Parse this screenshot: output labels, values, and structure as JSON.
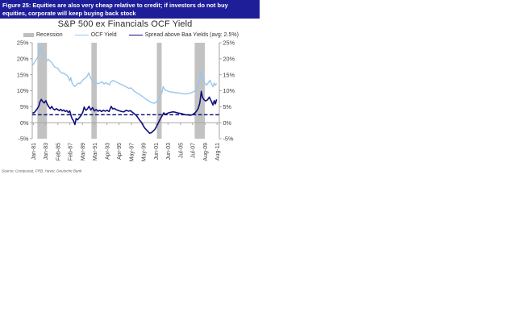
{
  "header": {
    "line1": "Figure 25: Equities are also very cheap relative to credit; if investors do not buy",
    "line2": "equities, corporate will keep buying back stock",
    "bg_color": "#1E1E99",
    "text_color": "#FFFFFF"
  },
  "chart_data": {
    "type": "line",
    "title": "S&P 500 ex Financials OCF Yield",
    "source": "Source: Compustat, FRB, Haver, Deutsche Bank",
    "legend": [
      {
        "label": "Recession",
        "swatch": "box",
        "color": "#BEBEBE"
      },
      {
        "label": "OCF Yield",
        "swatch": "line",
        "color": "#99C7EC"
      },
      {
        "label": "Spread above Baa Yields (avg: 2.5%)",
        "swatch": "line",
        "color": "#10107E"
      }
    ],
    "colors": {
      "recession": "#C2C2C2",
      "axis": "#A6A6A6",
      "tick_text": "#404040",
      "source_text": "#595959"
    },
    "y_axis": {
      "min": -5,
      "max": 25,
      "ticks": [
        25,
        20,
        15,
        10,
        5,
        0,
        -5
      ],
      "suffix": "%",
      "sides": "both"
    },
    "x_axis": {
      "min": 1980.85,
      "max": 2012.0,
      "ticks": [
        {
          "label": "Jan-81",
          "year": 1981.04
        },
        {
          "label": "Jan-83",
          "year": 1983.04
        },
        {
          "label": "Feb-85",
          "year": 1985.12
        },
        {
          "label": "Feb-87",
          "year": 1987.12
        },
        {
          "label": "Mar-89",
          "year": 1989.21
        },
        {
          "label": "Mar-91",
          "year": 1991.21
        },
        {
          "label": "Apr-93",
          "year": 1993.29
        },
        {
          "label": "Apr-95",
          "year": 1995.29
        },
        {
          "label": "May-97",
          "year": 1997.37
        },
        {
          "label": "May-99",
          "year": 1999.37
        },
        {
          "label": "Jun-01",
          "year": 2001.45
        },
        {
          "label": "Jun-03",
          "year": 2003.45
        },
        {
          "label": "Jul-05",
          "year": 2005.54
        },
        {
          "label": "Jul-07",
          "year": 2007.54
        },
        {
          "label": "Aug-09",
          "year": 2009.62
        },
        {
          "label": "Aug-11",
          "year": 2011.62
        }
      ]
    },
    "average_line": {
      "value": 2.5,
      "style": "dashed",
      "color": "#10107E"
    },
    "recessions": [
      [
        1981.7,
        1983.3
      ],
      [
        1990.7,
        1991.6
      ],
      [
        2001.6,
        2002.4
      ],
      [
        2007.9,
        2009.6
      ]
    ],
    "series": [
      {
        "name": "OCF Yield",
        "color": "#99C7EC",
        "width": 1.4,
        "points": [
          [
            1980.9,
            18.0
          ],
          [
            1981.2,
            18.8
          ],
          [
            1981.45,
            19.6
          ],
          [
            1981.7,
            20.3
          ],
          [
            1981.95,
            21.5
          ],
          [
            1982.15,
            24.2
          ],
          [
            1982.35,
            23.2
          ],
          [
            1982.6,
            21.8
          ],
          [
            1982.85,
            20.8
          ],
          [
            1983.1,
            20.2
          ],
          [
            1983.35,
            19.4
          ],
          [
            1983.6,
            19.8
          ],
          [
            1983.85,
            19.2
          ],
          [
            1984.1,
            18.8
          ],
          [
            1984.35,
            18.1
          ],
          [
            1984.6,
            17.4
          ],
          [
            1984.85,
            17.2
          ],
          [
            1985.1,
            17.0
          ],
          [
            1985.35,
            16.3
          ],
          [
            1985.6,
            15.8
          ],
          [
            1985.85,
            15.4
          ],
          [
            1986.1,
            15.6
          ],
          [
            1986.35,
            15.1
          ],
          [
            1986.6,
            14.9
          ],
          [
            1986.85,
            14.2
          ],
          [
            1987.1,
            13.1
          ],
          [
            1987.25,
            14.1
          ],
          [
            1987.45,
            12.6
          ],
          [
            1987.7,
            11.7
          ],
          [
            1987.95,
            11.3
          ],
          [
            1988.2,
            11.9
          ],
          [
            1988.5,
            12.4
          ],
          [
            1988.8,
            12.2
          ],
          [
            1989.1,
            12.9
          ],
          [
            1989.4,
            13.6
          ],
          [
            1989.7,
            13.9
          ],
          [
            1990.0,
            14.5
          ],
          [
            1990.25,
            15.6
          ],
          [
            1990.5,
            14.3
          ],
          [
            1990.75,
            13.4
          ],
          [
            1991.0,
            12.9
          ],
          [
            1991.3,
            12.6
          ],
          [
            1991.6,
            12.4
          ],
          [
            1991.9,
            12.2
          ],
          [
            1992.2,
            12.5
          ],
          [
            1992.5,
            12.8
          ],
          [
            1992.8,
            12.1
          ],
          [
            1993.1,
            12.5
          ],
          [
            1993.4,
            12.2
          ],
          [
            1993.7,
            11.9
          ],
          [
            1994.0,
            12.9
          ],
          [
            1994.3,
            13.2
          ],
          [
            1994.6,
            12.9
          ],
          [
            1994.9,
            12.7
          ],
          [
            1995.2,
            12.4
          ],
          [
            1995.5,
            12.1
          ],
          [
            1995.8,
            11.9
          ],
          [
            1996.1,
            11.6
          ],
          [
            1996.4,
            11.3
          ],
          [
            1996.7,
            11.0
          ],
          [
            1997.0,
            10.7
          ],
          [
            1997.3,
            10.9
          ],
          [
            1997.6,
            10.3
          ],
          [
            1997.9,
            9.8
          ],
          [
            1998.2,
            9.4
          ],
          [
            1998.5,
            9.1
          ],
          [
            1998.8,
            8.7
          ],
          [
            1999.1,
            8.3
          ],
          [
            1999.4,
            7.9
          ],
          [
            1999.7,
            7.5
          ],
          [
            2000.0,
            7.1
          ],
          [
            2000.3,
            6.8
          ],
          [
            2000.6,
            6.4
          ],
          [
            2000.9,
            6.2
          ],
          [
            2001.2,
            6.1
          ],
          [
            2001.45,
            6.4
          ],
          [
            2001.7,
            6.9
          ],
          [
            2001.95,
            7.6
          ],
          [
            2002.2,
            8.3
          ],
          [
            2002.45,
            9.4
          ],
          [
            2002.65,
            11.3
          ],
          [
            2002.85,
            10.6
          ],
          [
            2003.1,
            10.1
          ],
          [
            2003.4,
            9.9
          ],
          [
            2003.7,
            9.7
          ],
          [
            2004.0,
            9.6
          ],
          [
            2004.4,
            9.5
          ],
          [
            2004.8,
            9.4
          ],
          [
            2005.2,
            9.3
          ],
          [
            2005.6,
            9.2
          ],
          [
            2006.0,
            9.1
          ],
          [
            2006.4,
            9.0
          ],
          [
            2006.8,
            9.1
          ],
          [
            2007.2,
            9.3
          ],
          [
            2007.6,
            9.6
          ],
          [
            2007.9,
            9.9
          ],
          [
            2008.2,
            10.7
          ],
          [
            2008.5,
            11.8
          ],
          [
            2008.75,
            13.6
          ],
          [
            2008.95,
            16.2
          ],
          [
            2009.15,
            14.2
          ],
          [
            2009.35,
            13.0
          ],
          [
            2009.6,
            12.3
          ],
          [
            2009.9,
            11.8
          ],
          [
            2010.2,
            12.6
          ],
          [
            2010.45,
            13.3
          ],
          [
            2010.7,
            12.2
          ],
          [
            2010.95,
            11.2
          ],
          [
            2011.15,
            12.4
          ],
          [
            2011.35,
            11.7
          ],
          [
            2011.55,
            12.3
          ]
        ]
      },
      {
        "name": "Spread above Baa Yields",
        "color": "#10107E",
        "width": 1.6,
        "points": [
          [
            1980.9,
            3.0
          ],
          [
            1981.2,
            3.2
          ],
          [
            1981.45,
            3.8
          ],
          [
            1981.7,
            4.4
          ],
          [
            1981.95,
            5.2
          ],
          [
            1982.15,
            6.6
          ],
          [
            1982.35,
            7.3
          ],
          [
            1982.6,
            6.6
          ],
          [
            1982.85,
            6.2
          ],
          [
            1983.1,
            6.9
          ],
          [
            1983.35,
            5.8
          ],
          [
            1983.6,
            5.0
          ],
          [
            1983.85,
            4.4
          ],
          [
            1984.1,
            5.1
          ],
          [
            1984.35,
            4.3
          ],
          [
            1984.6,
            4.0
          ],
          [
            1984.85,
            4.4
          ],
          [
            1985.1,
            4.1
          ],
          [
            1985.35,
            3.8
          ],
          [
            1985.6,
            4.2
          ],
          [
            1985.85,
            3.7
          ],
          [
            1986.1,
            4.0
          ],
          [
            1986.35,
            3.5
          ],
          [
            1986.6,
            3.8
          ],
          [
            1986.85,
            3.2
          ],
          [
            1987.1,
            3.7
          ],
          [
            1987.3,
            2.3
          ],
          [
            1987.5,
            1.2
          ],
          [
            1987.7,
            0.7
          ],
          [
            1987.95,
            -0.6
          ],
          [
            1988.15,
            1.3
          ],
          [
            1988.4,
            0.9
          ],
          [
            1988.7,
            1.6
          ],
          [
            1989.0,
            2.3
          ],
          [
            1989.3,
            3.4
          ],
          [
            1989.5,
            4.9
          ],
          [
            1989.75,
            3.9
          ],
          [
            1990.0,
            4.2
          ],
          [
            1990.3,
            5.1
          ],
          [
            1990.6,
            4.0
          ],
          [
            1990.9,
            4.7
          ],
          [
            1991.2,
            3.7
          ],
          [
            1991.5,
            4.1
          ],
          [
            1991.8,
            3.6
          ],
          [
            1992.1,
            3.9
          ],
          [
            1992.4,
            3.5
          ],
          [
            1992.7,
            3.9
          ],
          [
            1993.0,
            3.6
          ],
          [
            1993.3,
            3.9
          ],
          [
            1993.65,
            3.5
          ],
          [
            1994.0,
            5.1
          ],
          [
            1994.25,
            4.3
          ],
          [
            1994.5,
            4.5
          ],
          [
            1994.8,
            4.1
          ],
          [
            1995.1,
            3.9
          ],
          [
            1995.4,
            3.7
          ],
          [
            1995.75,
            3.5
          ],
          [
            1996.1,
            3.4
          ],
          [
            1996.5,
            3.9
          ],
          [
            1996.9,
            3.6
          ],
          [
            1997.2,
            3.8
          ],
          [
            1997.5,
            3.3
          ],
          [
            1997.8,
            2.9
          ],
          [
            1998.1,
            2.4
          ],
          [
            1998.4,
            1.7
          ],
          [
            1998.7,
            0.9
          ],
          [
            1999.0,
            0.2
          ],
          [
            1999.3,
            -0.8
          ],
          [
            1999.6,
            -1.7
          ],
          [
            1999.9,
            -2.3
          ],
          [
            2000.2,
            -2.9
          ],
          [
            2000.4,
            -3.3
          ],
          [
            2000.7,
            -3.1
          ],
          [
            2001.0,
            -2.6
          ],
          [
            2001.3,
            -2.0
          ],
          [
            2001.6,
            -1.0
          ],
          [
            2001.9,
            0.2
          ],
          [
            2002.2,
            1.3
          ],
          [
            2002.5,
            2.2
          ],
          [
            2002.75,
            3.1
          ],
          [
            2003.0,
            2.6
          ],
          [
            2003.3,
            2.9
          ],
          [
            2003.6,
            3.1
          ],
          [
            2004.0,
            3.3
          ],
          [
            2004.4,
            3.4
          ],
          [
            2004.8,
            3.2
          ],
          [
            2005.2,
            3.0
          ],
          [
            2005.6,
            2.9
          ],
          [
            2006.0,
            2.7
          ],
          [
            2006.4,
            2.5
          ],
          [
            2006.8,
            2.4
          ],
          [
            2007.2,
            2.3
          ],
          [
            2007.6,
            2.6
          ],
          [
            2007.9,
            3.0
          ],
          [
            2008.2,
            3.6
          ],
          [
            2008.5,
            4.5
          ],
          [
            2008.75,
            6.2
          ],
          [
            2009.0,
            9.8
          ],
          [
            2009.2,
            8.0
          ],
          [
            2009.45,
            7.2
          ],
          [
            2009.75,
            6.8
          ],
          [
            2010.05,
            7.2
          ],
          [
            2010.35,
            8.0
          ],
          [
            2010.65,
            6.8
          ],
          [
            2010.95,
            5.5
          ],
          [
            2011.15,
            6.9
          ],
          [
            2011.35,
            5.9
          ],
          [
            2011.55,
            7.3
          ]
        ]
      }
    ]
  }
}
